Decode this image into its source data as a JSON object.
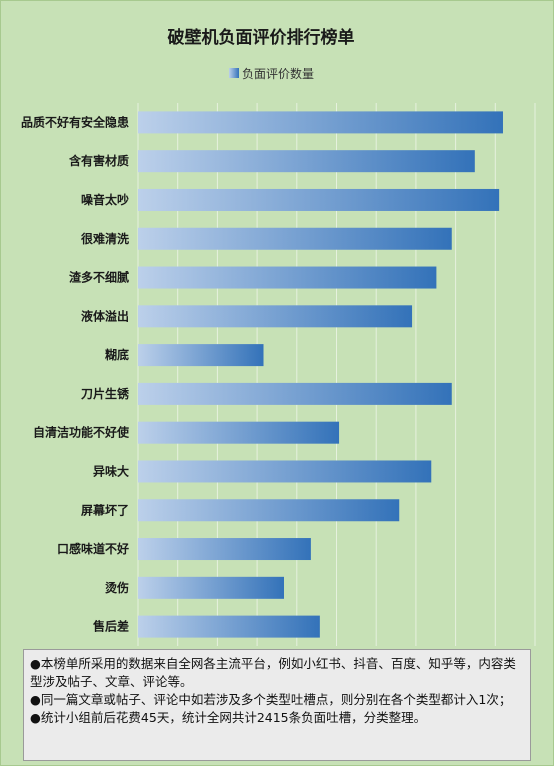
{
  "chart_data": {
    "type": "bar",
    "orientation": "horizontal",
    "title": "破壁机负面评价排行榜单",
    "legend": [
      "负面评价数量"
    ],
    "legend_position": "top",
    "grid": true,
    "categories": [
      "品质不好有安全隐患",
      "含有害材质",
      "噪音太吵",
      "很难清洗",
      "渣多不细腻",
      "液体溢出",
      "糊底",
      "刀片生锈",
      "自清洁功能不好使",
      "异味大",
      "屏幕坏了",
      "口感味道不好",
      "烫伤",
      "售后差"
    ],
    "series": [
      {
        "name": "负面评价数量",
        "values": [
          285,
          263,
          282,
          245,
          233,
          214,
          98,
          245,
          157,
          229,
          204,
          135,
          114,
          142
        ]
      }
    ],
    "xlim": [
      0,
      310
    ]
  },
  "colors": {
    "bar_light": "#bcd0ea",
    "bar_dark": "#3372b9",
    "background": "#c7e1b6",
    "grid": "#e6f1de"
  },
  "notes": [
    "●本榜单所采用的数据来自全网各主流平台，例如小红书、抖音、百度、知乎等，内容类型涉及帖子、文章、评论等。",
    "●同一篇文章或帖子、评论中如若涉及多个类型吐槽点，则分别在各个类型都计入1次；",
    "●统计小组前后花费45天，统计全网共计2415条负面吐槽，分类整理。"
  ]
}
